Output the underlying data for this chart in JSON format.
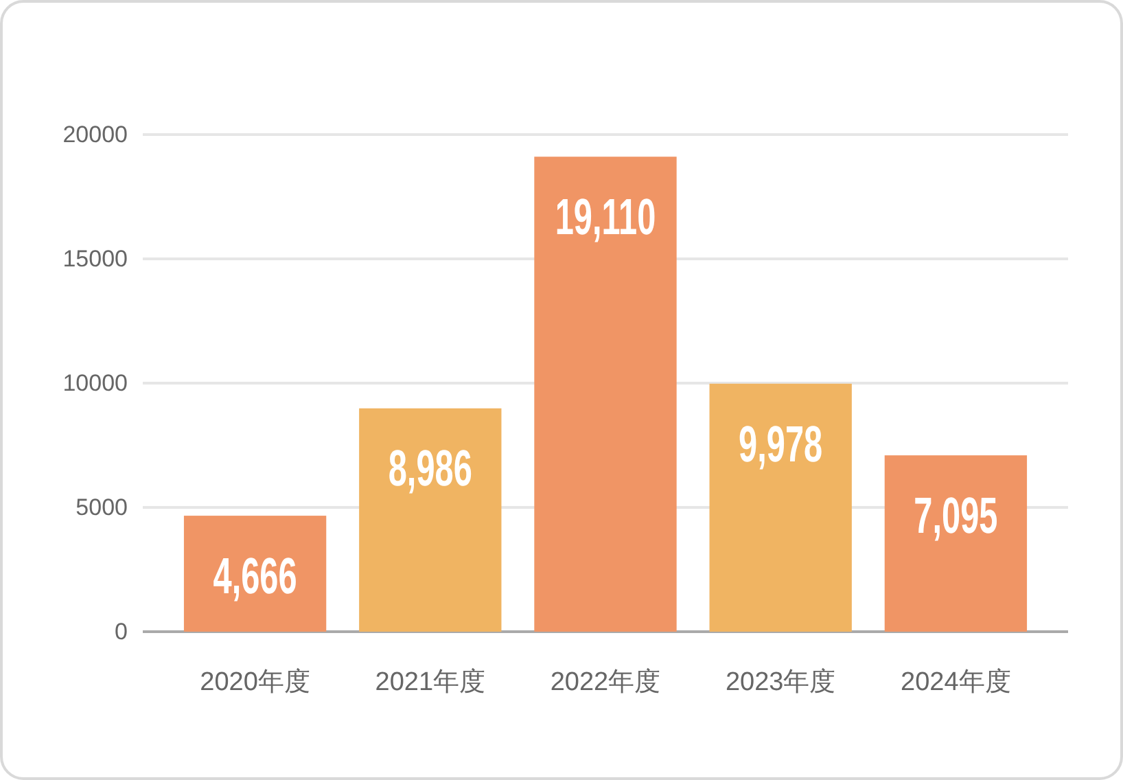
{
  "chart_data": {
    "type": "bar",
    "categories": [
      "2020年度",
      "2021年度",
      "2022年度",
      "2023年度",
      "2024年度"
    ],
    "values": [
      4666,
      8986,
      19110,
      9978,
      7095
    ],
    "colors": [
      "#f09565",
      "#f0b462",
      "#f09565",
      "#f0b462",
      "#f09565"
    ],
    "value_labels": [
      "4,666",
      "8,986",
      "19,110",
      "9,978",
      "7,095"
    ],
    "ylim": [
      0,
      20000
    ],
    "yticks": [
      0,
      5000,
      10000,
      15000,
      20000
    ],
    "grid": "y"
  }
}
